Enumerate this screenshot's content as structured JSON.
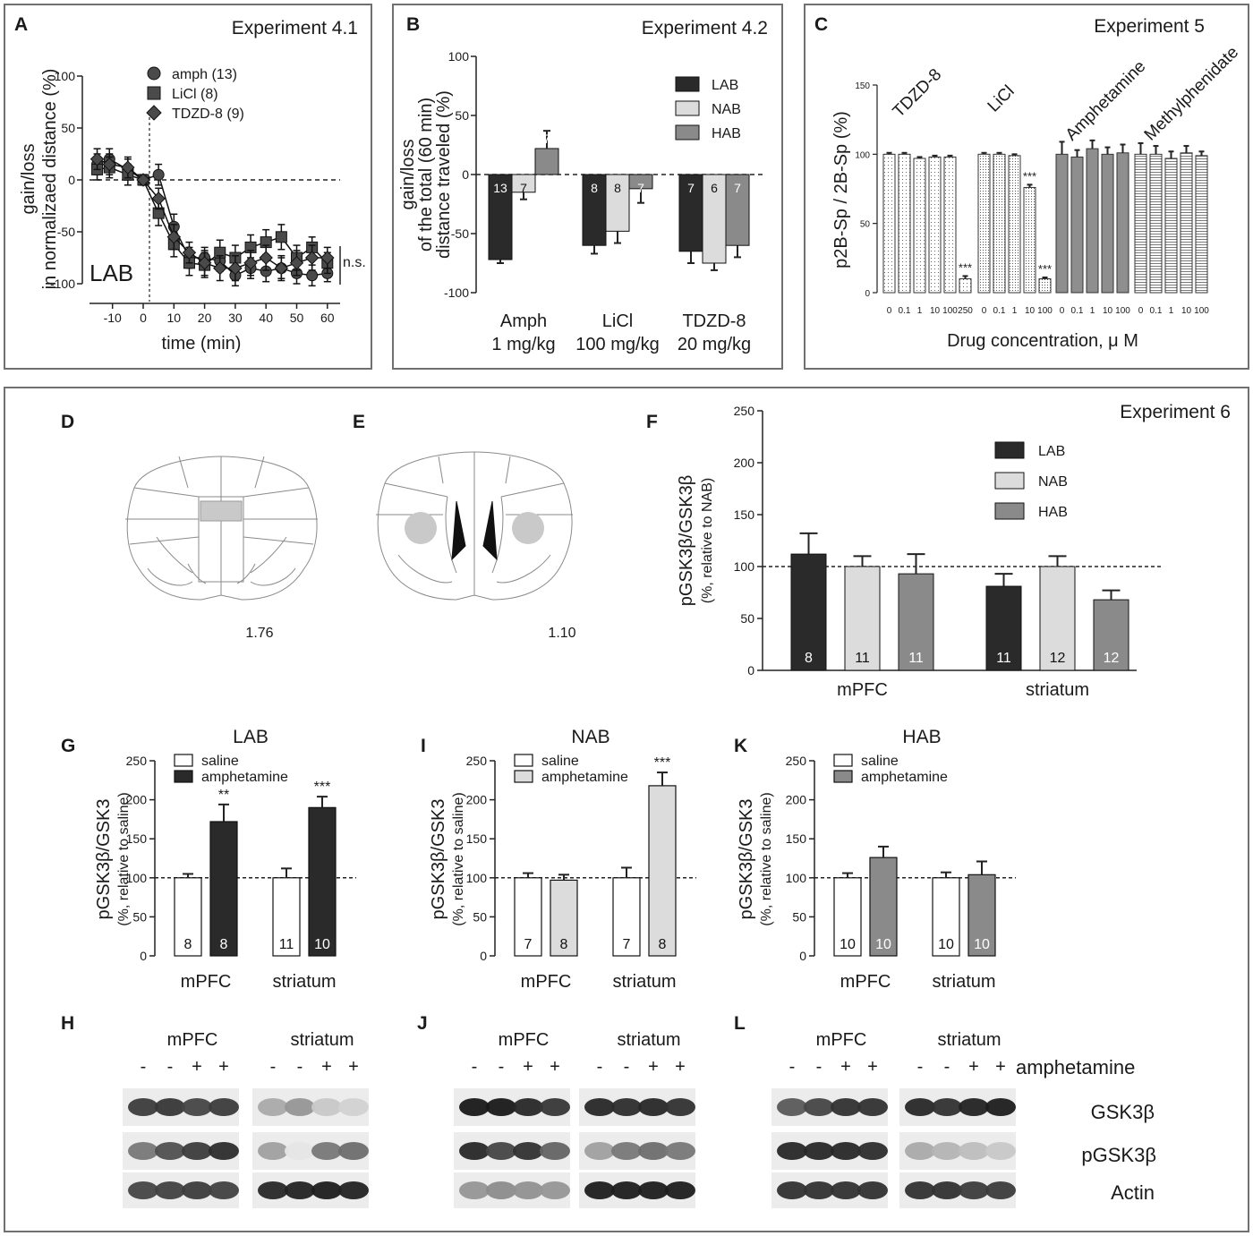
{
  "palette": {
    "LAB": "#2a2a2a",
    "NAB": "#dcdcdc",
    "HAB": "#8a8a8a",
    "saline": "#ffffff",
    "TDZD": "#d6d6d6",
    "LiClC": "#c8c8c8",
    "Amph": "#8e8e8e",
    "MPH": "#bdbdbd"
  },
  "chart_data": [
    {
      "id": "A",
      "type": "line",
      "panel_label": "A",
      "title": "Experiment 4.1",
      "xlabel": "time (min)",
      "ylabel": [
        "gain/loss",
        "in normalizaed distance (%)"
      ],
      "ylim": [
        -100,
        100
      ],
      "yticks": [
        100,
        50,
        0,
        -50,
        -100
      ],
      "xticks": [
        -10,
        0,
        10,
        20,
        30,
        40,
        50,
        60
      ],
      "group_label": "LAB",
      "annotation": "n.s.",
      "series": [
        {
          "name": "amph (13)",
          "marker": "circle",
          "x": [
            -15,
            -11,
            -5,
            0,
            5,
            10,
            15,
            20,
            25,
            30,
            35,
            40,
            45,
            50,
            55,
            60
          ],
          "y": [
            15,
            20,
            10,
            0,
            5,
            -45,
            -75,
            -75,
            -78,
            -92,
            -85,
            -88,
            -85,
            -90,
            -92,
            -90
          ],
          "err": [
            10,
            10,
            10,
            5,
            10,
            12,
            10,
            10,
            10,
            10,
            10,
            10,
            10,
            10,
            10,
            8
          ]
        },
        {
          "name": "LiCl  (8)",
          "marker": "square",
          "x": [
            -15,
            -11,
            -5,
            0,
            5,
            10,
            15,
            20,
            25,
            30,
            35,
            40,
            45,
            50,
            55,
            60
          ],
          "y": [
            10,
            12,
            5,
            0,
            -32,
            -62,
            -80,
            -82,
            -70,
            -75,
            -65,
            -60,
            -55,
            -75,
            -65,
            -80
          ],
          "err": [
            10,
            10,
            10,
            5,
            12,
            12,
            12,
            12,
            12,
            12,
            12,
            12,
            12,
            12,
            10,
            10
          ]
        },
        {
          "name": "TDZD-8 (9)",
          "marker": "diamond",
          "x": [
            -15,
            -11,
            -5,
            0,
            5,
            10,
            15,
            20,
            25,
            30,
            35,
            40,
            45,
            50,
            55,
            60
          ],
          "y": [
            20,
            15,
            12,
            0,
            -18,
            -55,
            -70,
            -80,
            -85,
            -85,
            -80,
            -75,
            -85,
            -80,
            -75,
            -75
          ],
          "err": [
            10,
            10,
            10,
            5,
            10,
            12,
            10,
            12,
            12,
            12,
            12,
            12,
            12,
            12,
            12,
            10
          ]
        }
      ]
    },
    {
      "id": "B",
      "type": "bar",
      "panel_label": "B",
      "title": "Experiment 4.2",
      "ylabel": [
        "gain/loss",
        "of the total (60 min)",
        "distance traveled (%)"
      ],
      "ylim": [
        -100,
        100
      ],
      "yticks": [
        100,
        50,
        0,
        -50,
        -100
      ],
      "groups": [
        {
          "line1": "Amph",
          "line2": "1 mg/kg"
        },
        {
          "line1": "LiCl",
          "line2": "100 mg/kg"
        },
        {
          "line1": "TDZD-8",
          "line2": "20 mg/kg"
        }
      ],
      "legend": [
        "LAB",
        "NAB",
        "HAB"
      ],
      "series": [
        {
          "name": "LAB",
          "values": [
            -72,
            -60,
            -65
          ],
          "err": [
            3,
            7,
            10
          ],
          "n": [
            "13",
            "8",
            "7"
          ]
        },
        {
          "name": "NAB",
          "values": [
            -15,
            -48,
            -75
          ],
          "err": [
            6,
            10,
            6
          ],
          "n": [
            "7",
            "8",
            "6"
          ]
        },
        {
          "name": "HAB",
          "values": [
            22,
            -12,
            -60
          ],
          "err": [
            15,
            12,
            10
          ],
          "n": [
            "7",
            "7",
            "7"
          ]
        }
      ]
    },
    {
      "id": "C",
      "type": "bar",
      "panel_label": "C",
      "title": "Experiment 5",
      "ylabel": "p2B-Sp / 2B-Sp (%)",
      "xlabel": "Drug concentration, μ M",
      "ylim": [
        0,
        150
      ],
      "yticks": [
        150,
        100,
        50,
        0
      ],
      "groups": [
        {
          "name": "TDZD-8",
          "ticks": [
            "0",
            "0.1",
            "1",
            "10",
            "100",
            "250"
          ],
          "values": [
            100,
            100,
            97,
            98,
            98,
            10
          ],
          "err": [
            1,
            1,
            1,
            1,
            1,
            2
          ],
          "stars": [
            "",
            "",
            "",
            "",
            "",
            "***"
          ]
        },
        {
          "name": "LiCl",
          "ticks": [
            "0",
            "0.1",
            "1",
            "10",
            "100"
          ],
          "values": [
            100,
            100,
            99,
            76,
            10
          ],
          "err": [
            1,
            1,
            1,
            2,
            1
          ],
          "stars": [
            "",
            "",
            "",
            "***",
            "***"
          ]
        },
        {
          "name": "Amphetamine",
          "ticks": [
            "0",
            "0.1",
            "1",
            "10",
            "100"
          ],
          "values": [
            100,
            98,
            104,
            100,
            101
          ],
          "err": [
            9,
            5,
            6,
            5,
            6
          ],
          "stars": [
            "",
            "",
            "",
            "",
            ""
          ]
        },
        {
          "name": "Methylphenidate",
          "ticks": [
            "0",
            "0.1",
            "1",
            "10",
            "100"
          ],
          "values": [
            100,
            100,
            97,
            101,
            99
          ],
          "err": [
            8,
            6,
            5,
            5,
            3
          ],
          "stars": [
            "",
            "",
            "",
            "",
            ""
          ]
        }
      ]
    },
    {
      "id": "F",
      "type": "bar",
      "panel_label": "F",
      "title": "Experiment 6",
      "ylabel": [
        "pGSK3β/GSK3β",
        "(%, relative to NAB)"
      ],
      "ylim": [
        0,
        250
      ],
      "yticks": [
        250,
        200,
        150,
        100,
        50,
        0
      ],
      "categories": [
        "mPFC",
        "striatum"
      ],
      "legend": [
        "LAB",
        "NAB",
        "HAB"
      ],
      "series": [
        {
          "name": "LAB",
          "values": [
            112,
            81
          ],
          "err": [
            20,
            12
          ],
          "n": [
            "8",
            "11"
          ]
        },
        {
          "name": "NAB",
          "values": [
            100,
            100
          ],
          "err": [
            10,
            10
          ],
          "n": [
            "11",
            "12"
          ]
        },
        {
          "name": "HAB",
          "values": [
            93,
            68
          ],
          "err": [
            19,
            9
          ],
          "n": [
            "11",
            "12"
          ]
        }
      ]
    },
    {
      "id": "G",
      "type": "bar",
      "panel_label": "G",
      "title": "LAB",
      "ylabel": [
        "pGSK3β/GSK3",
        "(%, relative to saline)"
      ],
      "ylim": [
        0,
        250
      ],
      "yticks": [
        250,
        200,
        150,
        100,
        50,
        0
      ],
      "categories": [
        "mPFC",
        "striatum"
      ],
      "treat_key": "LAB",
      "series": [
        {
          "name": "saline",
          "values": [
            100,
            100
          ],
          "err": [
            5,
            12
          ],
          "n": [
            "8",
            "11"
          ],
          "stars": [
            "",
            ""
          ]
        },
        {
          "name": "amphetamine",
          "values": [
            172,
            190
          ],
          "err": [
            22,
            14
          ],
          "n": [
            "8",
            "10"
          ],
          "stars": [
            "**",
            "***"
          ]
        }
      ]
    },
    {
      "id": "I",
      "type": "bar",
      "panel_label": "I",
      "title": "NAB",
      "ylabel": [
        "pGSK3β/GSK3",
        "(%, relative to saline)"
      ],
      "ylim": [
        0,
        250
      ],
      "yticks": [
        250,
        200,
        150,
        100,
        50,
        0
      ],
      "categories": [
        "mPFC",
        "striatum"
      ],
      "treat_key": "NAB",
      "series": [
        {
          "name": "saline",
          "values": [
            100,
            100
          ],
          "err": [
            6,
            13
          ],
          "n": [
            "7",
            "7"
          ],
          "stars": [
            "",
            ""
          ]
        },
        {
          "name": "amphetamine",
          "values": [
            97,
            218
          ],
          "err": [
            7,
            17
          ],
          "n": [
            "8",
            "8"
          ],
          "stars": [
            "",
            "***"
          ]
        }
      ]
    },
    {
      "id": "K",
      "type": "bar",
      "panel_label": "K",
      "title": "HAB",
      "ylabel": [
        "pGSK3β/GSK3",
        "(%, relative to saline)"
      ],
      "ylim": [
        0,
        250
      ],
      "yticks": [
        250,
        200,
        150,
        100,
        50,
        0
      ],
      "categories": [
        "mPFC",
        "striatum"
      ],
      "treat_key": "HAB",
      "series": [
        {
          "name": "saline",
          "values": [
            100,
            100
          ],
          "err": [
            6,
            7
          ],
          "n": [
            "10",
            "10"
          ],
          "stars": [
            "",
            ""
          ]
        },
        {
          "name": "amphetamine",
          "values": [
            126,
            104
          ],
          "err": [
            14,
            17
          ],
          "n": [
            "10",
            "10"
          ],
          "stars": [
            "",
            ""
          ]
        }
      ]
    }
  ],
  "sections": {
    "D": {
      "label": "D",
      "coord": "1.76"
    },
    "E": {
      "label": "E",
      "coord": "1.10"
    }
  },
  "blots": [
    {
      "id": "H",
      "label": "H",
      "regions": [
        "mPFC",
        "striatum"
      ],
      "signs": [
        "-",
        "-",
        "+",
        "+",
        "-",
        "-",
        "+",
        "+"
      ]
    },
    {
      "id": "J",
      "label": "J",
      "regions": [
        "mPFC",
        "striatum"
      ],
      "signs": [
        "-",
        "-",
        "+",
        "+",
        "-",
        "-",
        "+",
        "+"
      ]
    },
    {
      "id": "L",
      "label": "L",
      "regions": [
        "mPFC",
        "striatum"
      ],
      "signs": [
        "-",
        "-",
        "+",
        "+",
        "-",
        "-",
        "+",
        "+"
      ]
    }
  ],
  "blot_rows": [
    "GSK3β",
    "pGSK3β",
    "Actin"
  ],
  "blot_treatment": "amphetamine"
}
